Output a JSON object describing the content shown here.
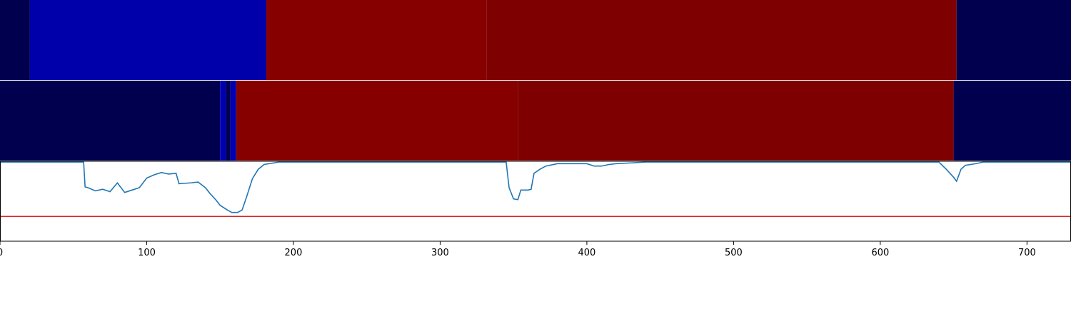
{
  "chart_data": [
    {
      "type": "heatmap",
      "xlim": [
        0,
        730
      ],
      "segments": [
        {
          "start": 0,
          "end": 20.4,
          "color": "#00004f"
        },
        {
          "start": 20.4,
          "end": 181.5,
          "color": "#0000aa"
        },
        {
          "start": 181.5,
          "end": 331.5,
          "color": "#870000"
        },
        {
          "start": 331.5,
          "end": 652,
          "color": "#7f0000"
        },
        {
          "start": 652,
          "end": 730,
          "color": "#00004f"
        }
      ]
    },
    {
      "type": "heatmap",
      "xlim": [
        0,
        730
      ],
      "segments": [
        {
          "start": 0,
          "end": 150,
          "color": "#00004f"
        },
        {
          "start": 150,
          "end": 154,
          "color": "#0000b0"
        },
        {
          "start": 154,
          "end": 157,
          "color": "#00004f"
        },
        {
          "start": 157,
          "end": 161,
          "color": "#0000b0"
        },
        {
          "start": 161,
          "end": 353,
          "color": "#870000"
        },
        {
          "start": 353,
          "end": 650,
          "color": "#7f0000"
        },
        {
          "start": 650,
          "end": 730,
          "color": "#00004f"
        }
      ]
    },
    {
      "type": "line",
      "xlim": [
        0,
        730
      ],
      "ylim": [
        0,
        1
      ],
      "xticks": [
        0,
        100,
        200,
        300,
        400,
        500,
        600,
        700
      ],
      "threshold": {
        "value": 0.31,
        "color": "#d62728"
      },
      "series": [
        {
          "color": "#1f77b4",
          "x": [
            0,
            20,
            40,
            55,
            57,
            58,
            60,
            65,
            70,
            75,
            80,
            85,
            90,
            95,
            100,
            105,
            110,
            115,
            120,
            122,
            130,
            135,
            140,
            143,
            147,
            150,
            155,
            158,
            162,
            165,
            168,
            172,
            176,
            180,
            190,
            250,
            300,
            345,
            347,
            350,
            353,
            355,
            360,
            362,
            364,
            368,
            372,
            380,
            400,
            405,
            410,
            415,
            420,
            430,
            440,
            500,
            550,
            600,
            640,
            645,
            650,
            652,
            655,
            658,
            665,
            670,
            700,
            730
          ],
          "values": [
            0.99,
            0.99,
            0.99,
            0.99,
            0.99,
            0.68,
            0.67,
            0.63,
            0.65,
            0.62,
            0.73,
            0.61,
            0.64,
            0.67,
            0.79,
            0.83,
            0.86,
            0.84,
            0.85,
            0.72,
            0.73,
            0.74,
            0.67,
            0.6,
            0.52,
            0.45,
            0.39,
            0.36,
            0.36,
            0.39,
            0.55,
            0.78,
            0.9,
            0.96,
            0.99,
            0.99,
            0.99,
            0.99,
            0.67,
            0.53,
            0.52,
            0.64,
            0.64,
            0.65,
            0.85,
            0.9,
            0.94,
            0.97,
            0.97,
            0.94,
            0.94,
            0.96,
            0.97,
            0.98,
            0.99,
            0.99,
            0.99,
            0.99,
            0.99,
            0.9,
            0.8,
            0.75,
            0.9,
            0.95,
            0.97,
            0.99,
            0.99,
            0.99
          ]
        }
      ]
    }
  ]
}
